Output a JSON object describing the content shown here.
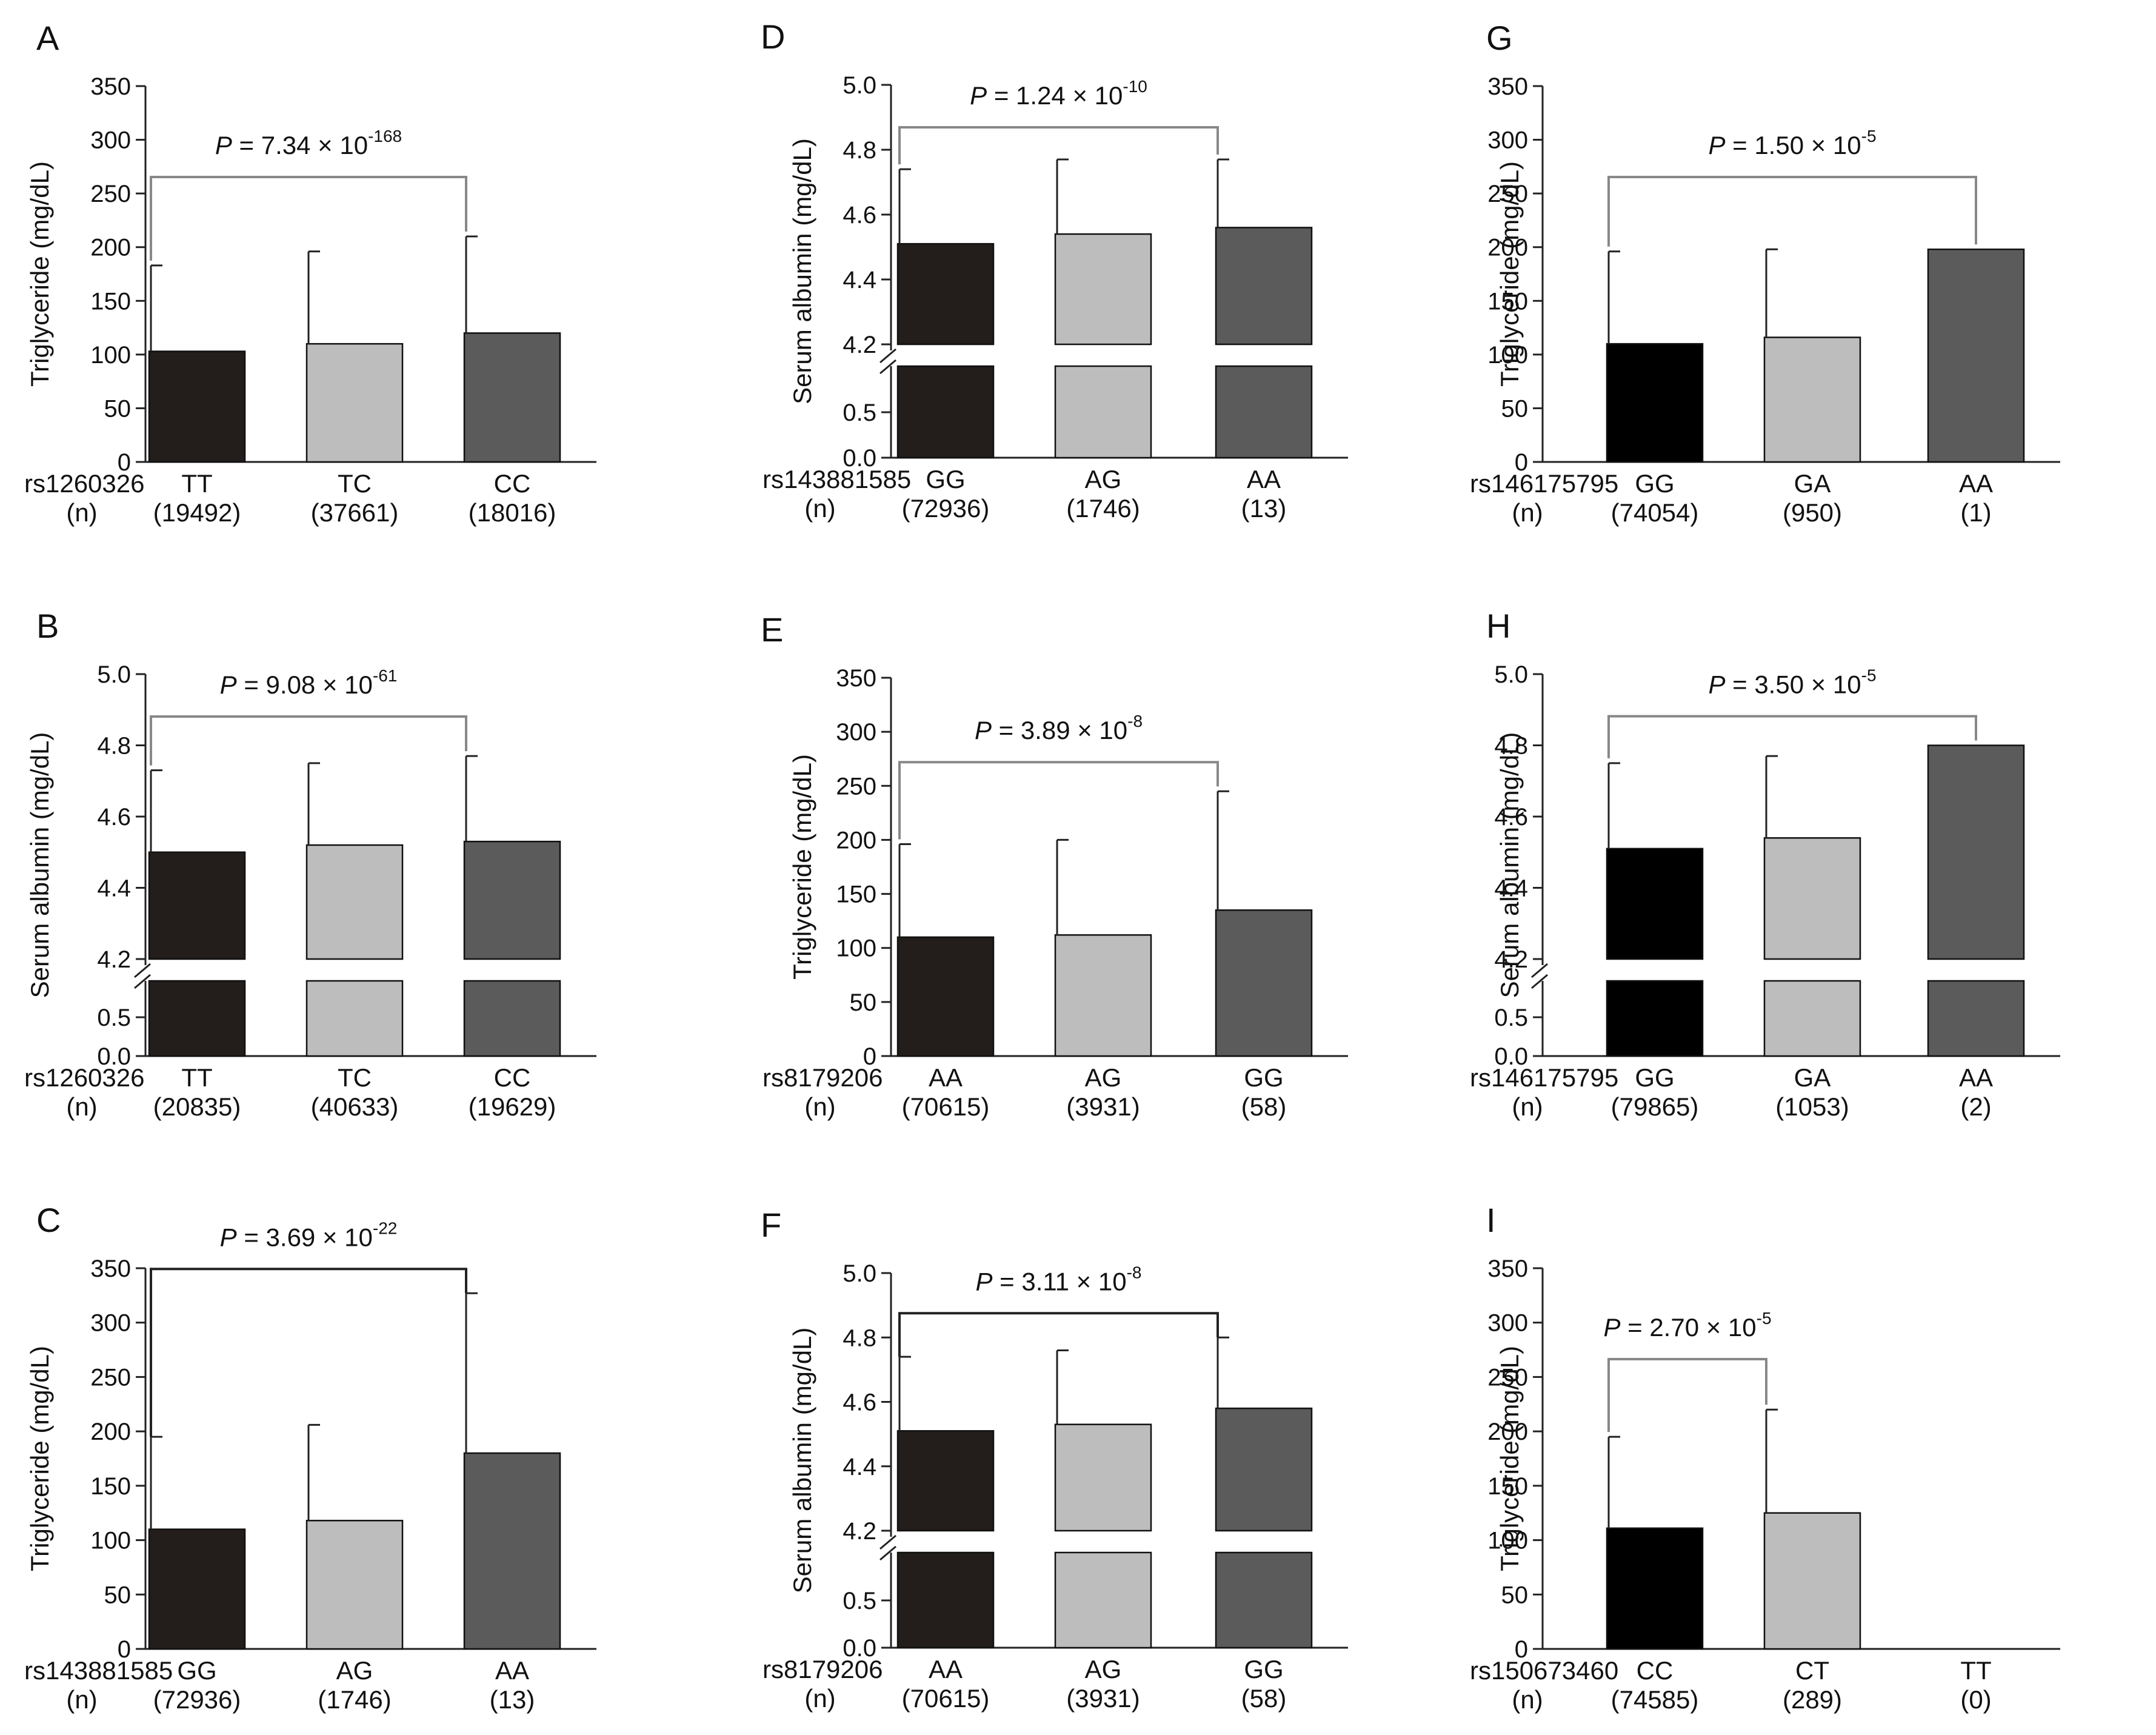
{
  "colors": {
    "dark": "#231d1b",
    "black": "#000000",
    "light": "#bdbdbd",
    "mid": "#5b5b5b",
    "axis": "#222222",
    "bracket_gray": "#888888",
    "bracket_dark": "#222222"
  },
  "p_prefix": "P",
  "p_times": " = ",
  "chart_data": [
    {
      "id": "A",
      "type": "bar",
      "panel_label": "A",
      "ylabel": "Triglyceride (mg/dL)",
      "snp": "rs1260326",
      "n_label": "(n)",
      "broken_axis": false,
      "ylim": [
        0,
        350
      ],
      "yticks": [
        "0",
        "50",
        "100",
        "150",
        "200",
        "250",
        "300",
        "350"
      ],
      "categories": [
        "TT",
        "TC",
        "CC"
      ],
      "n": [
        "(19492)",
        "(37661)",
        "(18016)"
      ],
      "values": [
        103,
        110,
        120
      ],
      "errors": [
        80,
        86,
        90
      ],
      "colors": [
        "dark",
        "light",
        "mid"
      ],
      "p_value": {
        "mantissa": "7.34",
        "times": "×",
        "base": "10",
        "exponent": "-168",
        "from": 0,
        "to": 2,
        "style": "gray"
      }
    },
    {
      "id": "B",
      "type": "bar",
      "panel_label": "B",
      "ylabel": "Serum albumin (mg/dL)",
      "snp": "rs1260326",
      "n_label": "(n)",
      "broken_axis": true,
      "upper_ylim": [
        4.2,
        5.0
      ],
      "upper_ticks": [
        "4.2",
        "4.4",
        "4.6",
        "4.8",
        "5.0"
      ],
      "lower_ticks": [
        "0.0",
        "0.5"
      ],
      "categories": [
        "TT",
        "TC",
        "CC"
      ],
      "n": [
        "(20835)",
        "(40633)",
        "(19629)"
      ],
      "values": [
        4.5,
        4.52,
        4.53
      ],
      "errors": [
        0.23,
        0.23,
        0.24
      ],
      "colors": [
        "dark",
        "light",
        "mid"
      ],
      "p_value": {
        "mantissa": "9.08",
        "times": "×",
        "base": "10",
        "exponent": "-61",
        "from": 0,
        "to": 2,
        "style": "gray"
      }
    },
    {
      "id": "C",
      "type": "bar",
      "panel_label": "C",
      "ylabel": "Triglyceride (mg/dL)",
      "snp": "rs143881585",
      "n_label": "(n)",
      "broken_axis": false,
      "ylim": [
        0,
        350
      ],
      "yticks": [
        "0",
        "50",
        "100",
        "150",
        "200",
        "250",
        "300",
        "350"
      ],
      "categories": [
        "GG",
        "AG",
        "AA"
      ],
      "n": [
        "(72936)",
        "(1746)",
        "(13)"
      ],
      "values": [
        110,
        118,
        180
      ],
      "errors": [
        85,
        88,
        147
      ],
      "colors": [
        "dark",
        "light",
        "mid"
      ],
      "p_value": {
        "mantissa": "3.69",
        "times": "×",
        "base": "10",
        "exponent": "-22",
        "from": 0,
        "to": 2,
        "style": "dark"
      }
    },
    {
      "id": "D",
      "type": "bar",
      "panel_label": "D",
      "ylabel": "Serum albumin (mg/dL)",
      "snp": "rs143881585",
      "n_label": "(n)",
      "broken_axis": true,
      "upper_ylim": [
        4.2,
        5.0
      ],
      "upper_ticks": [
        "4.2",
        "4.4",
        "4.6",
        "4.8",
        "5.0"
      ],
      "lower_ticks": [
        "0.0",
        "0.5"
      ],
      "categories": [
        "GG",
        "AG",
        "AA"
      ],
      "n": [
        "(72936)",
        "(1746)",
        "(13)"
      ],
      "values": [
        4.51,
        4.54,
        4.56
      ],
      "errors": [
        0.23,
        0.23,
        0.21
      ],
      "colors": [
        "dark",
        "light",
        "mid"
      ],
      "p_value": {
        "mantissa": "1.24",
        "times": "×",
        "base": "10",
        "exponent": "-10",
        "from": 0,
        "to": 2,
        "style": "gray"
      }
    },
    {
      "id": "E",
      "type": "bar",
      "panel_label": "E",
      "ylabel": "Triglyceride (mg/dL)",
      "snp": "rs8179206",
      "n_label": "(n)",
      "broken_axis": false,
      "ylim": [
        0,
        350
      ],
      "yticks": [
        "0",
        "50",
        "100",
        "150",
        "200",
        "250",
        "300",
        "350"
      ],
      "categories": [
        "AA",
        "AG",
        "GG"
      ],
      "n": [
        "(70615)",
        "(3931)",
        "(58)"
      ],
      "values": [
        110,
        112,
        135
      ],
      "errors": [
        86,
        88,
        110
      ],
      "colors": [
        "dark",
        "light",
        "mid"
      ],
      "p_value": {
        "mantissa": "3.89",
        "times": "×",
        "base": "10",
        "exponent": "-8",
        "from": 0,
        "to": 2,
        "style": "gray"
      }
    },
    {
      "id": "F",
      "type": "bar",
      "panel_label": "F",
      "ylabel": "Serum albumin (mg/dL)",
      "snp": "rs8179206",
      "n_label": "(n)",
      "broken_axis": true,
      "upper_ylim": [
        4.2,
        5.0
      ],
      "upper_ticks": [
        "4.2",
        "4.4",
        "4.6",
        "4.8",
        "5.0"
      ],
      "lower_ticks": [
        "0.0",
        "0.5"
      ],
      "categories": [
        "AA",
        "AG",
        "GG"
      ],
      "n": [
        "(70615)",
        "(3931)",
        "(58)"
      ],
      "values": [
        4.51,
        4.53,
        4.58
      ],
      "errors": [
        0.23,
        0.23,
        0.22
      ],
      "colors": [
        "dark",
        "light",
        "mid"
      ],
      "p_value": {
        "mantissa": "3.11",
        "times": "×",
        "base": "10",
        "exponent": "-8",
        "from": 0,
        "to": 2,
        "style": "dark"
      }
    },
    {
      "id": "G",
      "type": "bar",
      "panel_label": "G",
      "ylabel": "Triglyceride (mg/dL)",
      "snp": "rs146175795",
      "n_label": "(n)",
      "broken_axis": false,
      "ylim": [
        0,
        350
      ],
      "yticks": [
        "0",
        "50",
        "100",
        "150",
        "200",
        "250",
        "300",
        "350"
      ],
      "categories": [
        "GG",
        "GA",
        "AA"
      ],
      "n": [
        "(74054)",
        "(950)",
        "(1)"
      ],
      "values": [
        110,
        116,
        198
      ],
      "errors": [
        86,
        82,
        0
      ],
      "colors": [
        "black",
        "light",
        "mid"
      ],
      "p_value": {
        "mantissa": "1.50",
        "times": "×",
        "base": "10",
        "exponent": "-5",
        "from": 0,
        "to": 2,
        "style": "gray"
      }
    },
    {
      "id": "H",
      "type": "bar",
      "panel_label": "H",
      "ylabel": "Serum albumin (mg/dL)",
      "snp": "rs146175795",
      "n_label": "(n)",
      "broken_axis": true,
      "upper_ylim": [
        4.2,
        5.0
      ],
      "upper_ticks": [
        "4.2",
        "4.4",
        "4.6",
        "4.8",
        "5.0"
      ],
      "lower_ticks": [
        "0.0",
        "0.5"
      ],
      "categories": [
        "GG",
        "GA",
        "AA"
      ],
      "n": [
        "(79865)",
        "(1053)",
        "(2)"
      ],
      "values": [
        4.51,
        4.54,
        4.8
      ],
      "errors": [
        0.24,
        0.23,
        0.0
      ],
      "colors": [
        "black",
        "light",
        "mid"
      ],
      "p_value": {
        "mantissa": "3.50",
        "times": "×",
        "base": "10",
        "exponent": "-5",
        "from": 0,
        "to": 2,
        "style": "gray"
      }
    },
    {
      "id": "I",
      "type": "bar",
      "panel_label": "I",
      "ylabel": "Triglyceride (mg/dL)",
      "snp": "rs150673460",
      "n_label": "(n)",
      "broken_axis": false,
      "ylim": [
        0,
        350
      ],
      "yticks": [
        "0",
        "50",
        "100",
        "150",
        "200",
        "250",
        "300",
        "350"
      ],
      "categories": [
        "CC",
        "CT",
        "TT"
      ],
      "n": [
        "(74585)",
        "(289)",
        "(0)"
      ],
      "values": [
        111,
        125,
        null
      ],
      "errors": [
        84,
        95,
        null
      ],
      "colors": [
        "black",
        "light",
        "mid"
      ],
      "p_value": {
        "mantissa": "2.70",
        "times": "×",
        "base": "10",
        "exponent": "-5",
        "from": 0,
        "to": 1,
        "style": "gray"
      }
    }
  ]
}
